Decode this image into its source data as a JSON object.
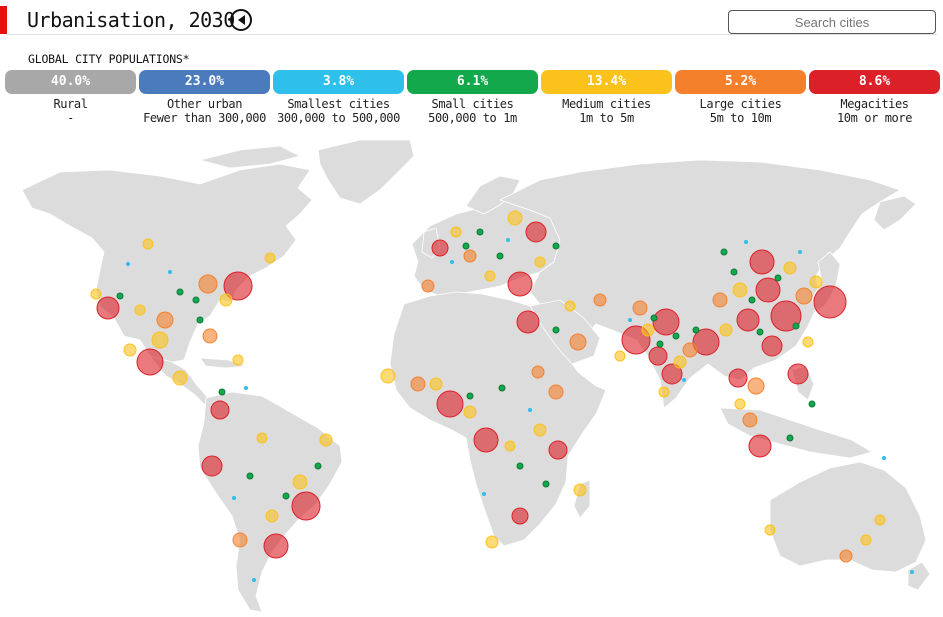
{
  "header": {
    "title": "Urbanisation, 2030",
    "search_placeholder": "Search cities",
    "subtitle": "GLOBAL CITY POPULATIONS*"
  },
  "colors": {
    "accent": "#e3120b",
    "land": "#dcdcdc",
    "borders": "#ffffff"
  },
  "legend": [
    {
      "id": "rural",
      "percent": "40.0%",
      "label": "Rural",
      "range": "-",
      "color": "#a8a8a8"
    },
    {
      "id": "other-urban",
      "percent": "23.0%",
      "label": "Other urban",
      "range": "Fewer than 300,000",
      "color": "#4b7bbd"
    },
    {
      "id": "smallest",
      "percent": "3.8%",
      "label": "Smallest cities",
      "range": "300,000 to 500,000",
      "color": "#2ebfea"
    },
    {
      "id": "small",
      "percent": "6.1%",
      "label": "Small cities",
      "range": "500,000 to 1m",
      "color": "#12a84b"
    },
    {
      "id": "medium",
      "percent": "13.4%",
      "label": "Medium cities",
      "range": "1m to 5m",
      "color": "#fbc21b"
    },
    {
      "id": "large",
      "percent": "5.2%",
      "label": "Large cities",
      "range": "5m to 10m",
      "color": "#f4802c"
    },
    {
      "id": "mega",
      "percent": "8.6%",
      "label": "Megacities",
      "range": "10m or more",
      "color": "#dc2028"
    }
  ]
}
